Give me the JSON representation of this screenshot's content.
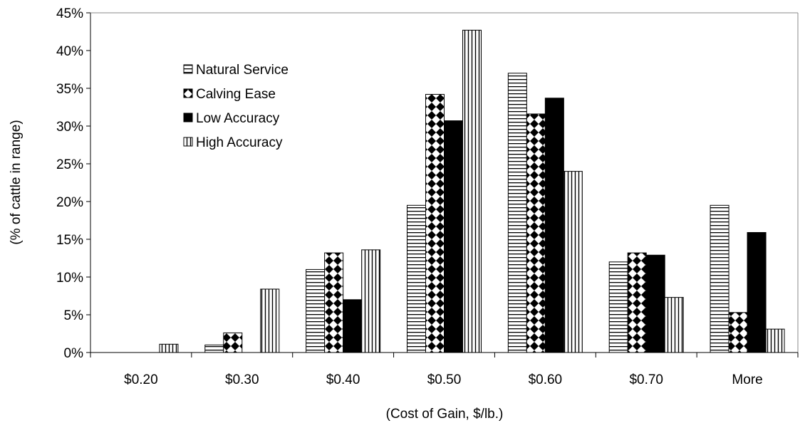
{
  "chart_data": {
    "type": "bar",
    "title": "",
    "xlabel": "(Cost of Gain, $/lb.)",
    "ylabel": "(% of cattle in range)",
    "ylim": [
      0,
      45
    ],
    "ytick_step": 5,
    "ytick_suffix": "%",
    "grid": false,
    "legend_position": "upper-left inside",
    "categories": [
      "$0.20",
      "$0.30",
      "$0.40",
      "$0.50",
      "$0.60",
      "$0.70",
      "More"
    ],
    "series": [
      {
        "name": "Natural Service",
        "pattern": "horizontal-stripes",
        "values": [
          0,
          1,
          11,
          19.5,
          37,
          12,
          19.5
        ]
      },
      {
        "name": "Calving Ease",
        "pattern": "diamond-checker",
        "values": [
          0,
          2.6,
          13.2,
          34.2,
          31.6,
          13.2,
          5.3
        ]
      },
      {
        "name": "Low Accuracy",
        "pattern": "solid-black",
        "values": [
          0,
          0,
          7,
          30.7,
          33.7,
          12.9,
          15.9
        ]
      },
      {
        "name": "High Accuracy",
        "pattern": "vertical-stripes",
        "values": [
          1.1,
          8.4,
          13.6,
          42.7,
          24,
          7.3,
          3.1
        ]
      }
    ]
  }
}
